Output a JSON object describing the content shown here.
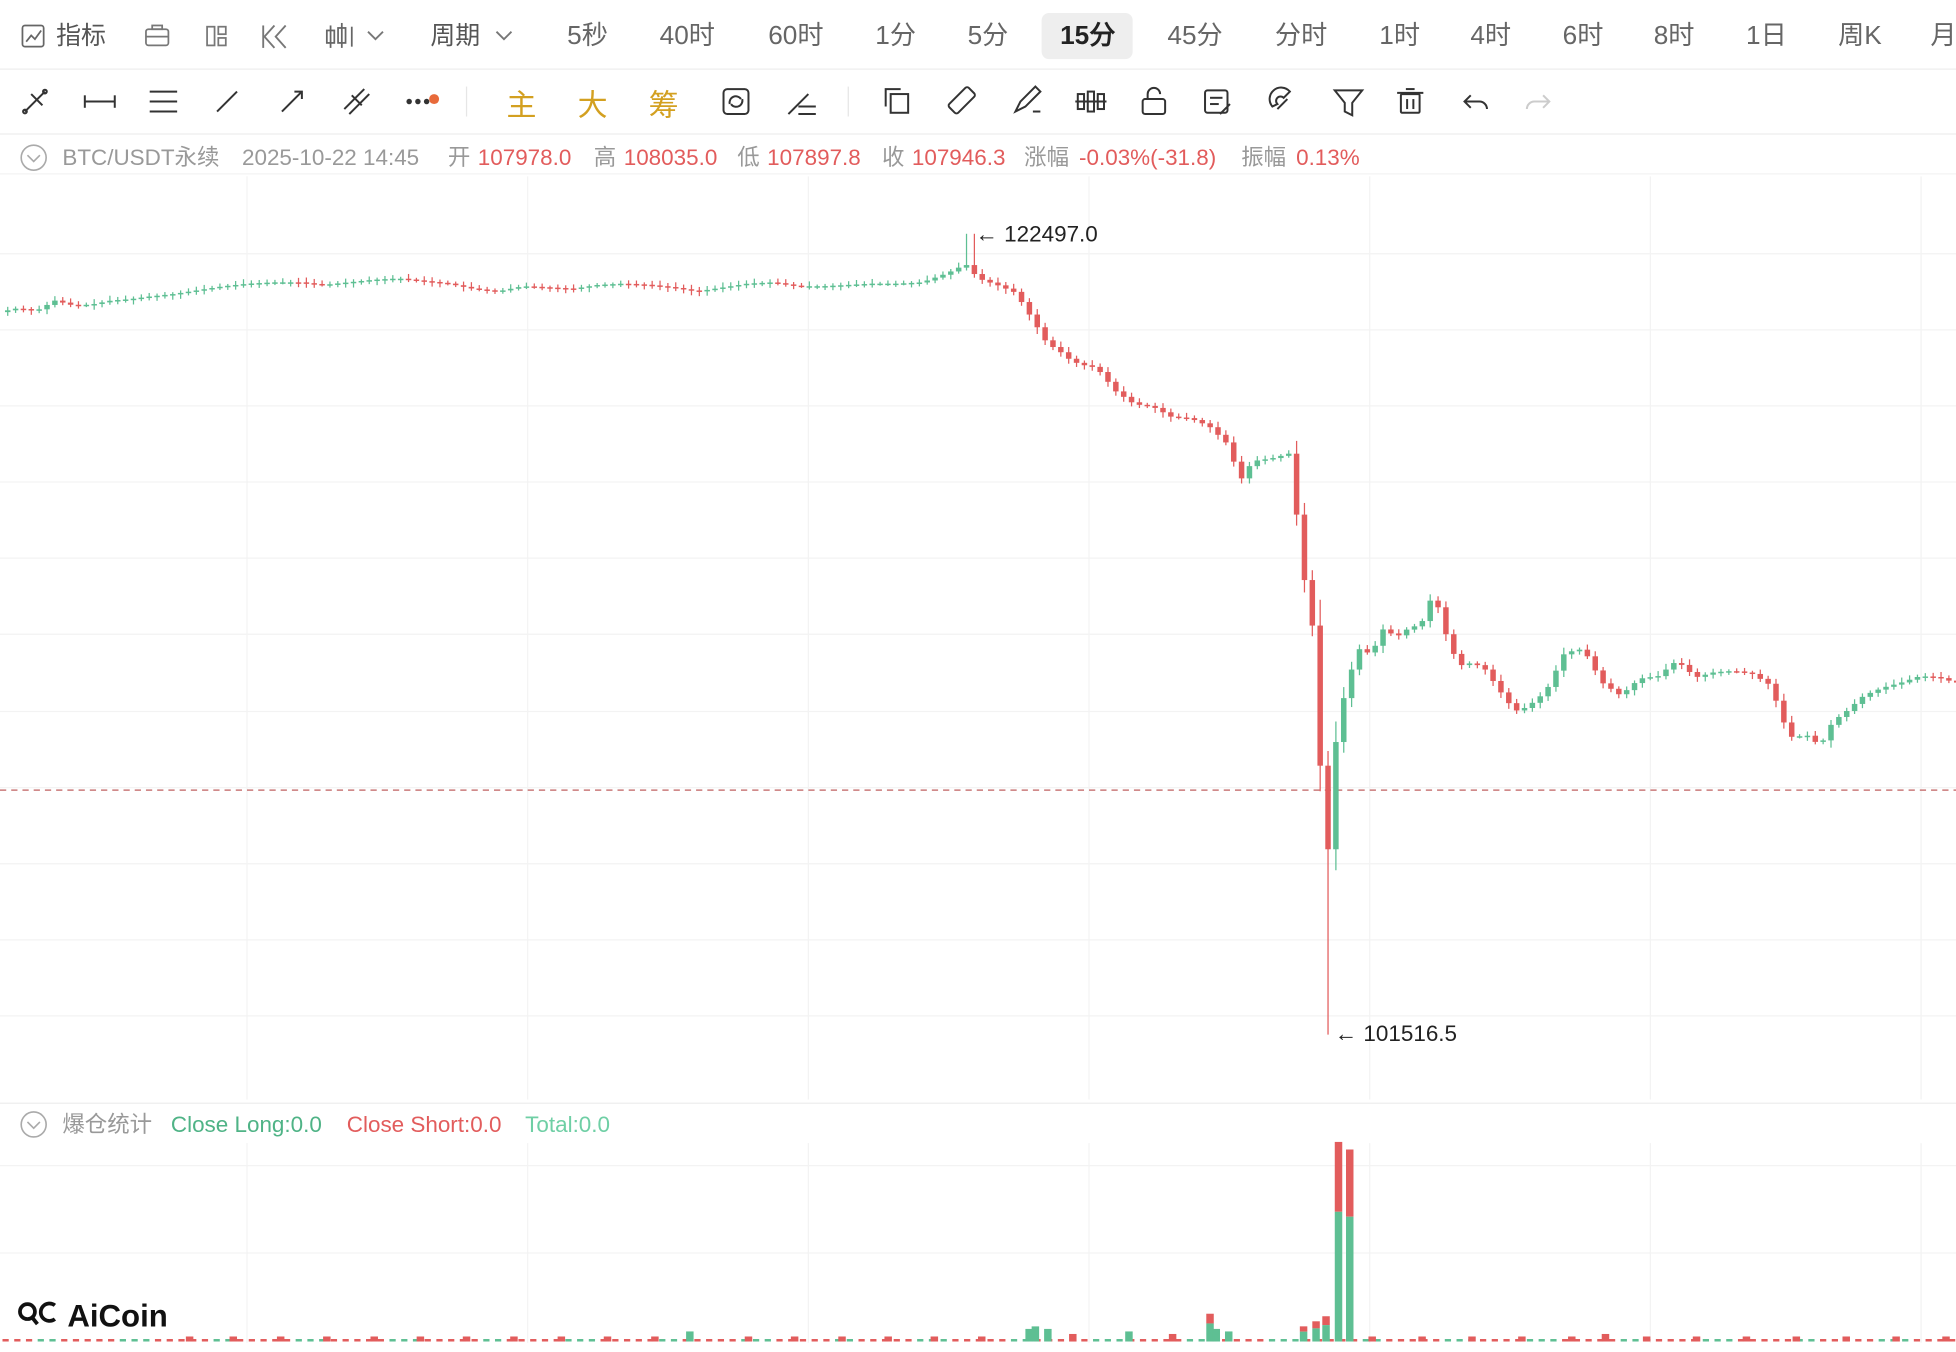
{
  "toolbar": {
    "indicator_label": "指标",
    "period_label": "周期",
    "periods": [
      "5秒",
      "40时",
      "60时",
      "1分",
      "5分",
      "15分",
      "45分",
      "分时",
      "1时",
      "4时",
      "6时",
      "8时",
      "1日",
      "周K",
      "月"
    ],
    "active_period": "15分",
    "icons": [
      "indicator-icon",
      "briefcase-icon",
      "layout-icon",
      "rewind-icon",
      "candle-type-icon",
      "chevron-down-icon"
    ]
  },
  "drawtools": {
    "icons": [
      "ray-icon",
      "horizontal-line-icon",
      "parallel-lines-icon",
      "trend-line-icon",
      "arrow-line-icon",
      "fib-icon",
      "more-icon",
      "copy-icon",
      "ruler-icon",
      "brush-icon",
      "candles-icon",
      "unlock-icon",
      "note-icon",
      "magnet-icon",
      "filter-icon",
      "trash-icon",
      "undo-icon",
      "redo-icon"
    ],
    "text_buttons": [
      "主",
      "大",
      "筹"
    ],
    "accent_color": "#d3a020"
  },
  "info": {
    "symbol": "BTC/USDT永续",
    "datetime": "2025-10-22 14:45",
    "open_label": "开",
    "open": "107978.0",
    "high_label": "高",
    "high": "108035.0",
    "low_label": "低",
    "low": "107897.8",
    "close_label": "收",
    "close": "107946.3",
    "change_label": "涨幅",
    "change": "-0.03%(-31.8)",
    "amplitude_label": "振幅",
    "amplitude": "0.13%"
  },
  "annotations": {
    "high_mark": "← 122497.0",
    "low_mark": "← 101516.5"
  },
  "liq": {
    "title": "爆仓统计",
    "close_long": "Close Long:0.0",
    "close_short": "Close Short:0.0",
    "total": "Total:0.0"
  },
  "brand": {
    "logo_text": "AiCoin"
  },
  "colors": {
    "up": "#5ebf93",
    "down": "#e25c5c",
    "grid": "#f2f2f2",
    "muted": "#999999",
    "dash": "#c97a7a"
  },
  "chart_data": {
    "type": "candlestick",
    "symbol": "BTC/USDT永续",
    "interval": "15分",
    "ohlc_range": {
      "high": 122497.0,
      "low": 101516.5
    },
    "close_trace": [
      [
        0,
        106.6
      ],
      [
        15,
        106.9
      ],
      [
        30,
        106.7
      ],
      [
        45,
        107.5
      ],
      [
        60,
        107.1
      ],
      [
        75,
        107.2
      ],
      [
        90,
        107.5
      ],
      [
        105,
        107.6
      ],
      [
        120,
        107.8
      ],
      [
        140,
        108.0
      ],
      [
        160,
        108.3
      ],
      [
        180,
        108.6
      ],
      [
        200,
        108.8
      ],
      [
        220,
        108.9
      ],
      [
        240,
        108.9
      ],
      [
        260,
        108.7
      ],
      [
        280,
        108.9
      ],
      [
        300,
        109.1
      ],
      [
        320,
        109.2
      ],
      [
        340,
        109.0
      ],
      [
        360,
        108.8
      ],
      [
        380,
        108.4
      ],
      [
        400,
        108.2
      ],
      [
        420,
        108.6
      ],
      [
        440,
        108.5
      ],
      [
        460,
        108.4
      ],
      [
        480,
        108.7
      ],
      [
        500,
        108.8
      ],
      [
        520,
        108.7
      ],
      [
        540,
        108.5
      ],
      [
        560,
        108.2
      ],
      [
        580,
        108.5
      ],
      [
        600,
        108.8
      ],
      [
        620,
        108.9
      ],
      [
        640,
        108.6
      ],
      [
        660,
        108.6
      ],
      [
        680,
        108.7
      ],
      [
        700,
        108.8
      ],
      [
        720,
        108.8
      ],
      [
        740,
        108.9
      ],
      [
        760,
        109.6
      ],
      [
        775,
        110.3
      ],
      [
        785,
        109.2
      ],
      [
        800,
        108.7
      ],
      [
        815,
        108.1
      ],
      [
        830,
        105.8
      ],
      [
        840,
        104.2
      ],
      [
        850,
        103.6
      ],
      [
        860,
        102.8
      ],
      [
        870,
        102.5
      ],
      [
        880,
        102.3
      ],
      [
        895,
        100.5
      ],
      [
        910,
        99.5
      ],
      [
        925,
        99.3
      ],
      [
        940,
        98.5
      ],
      [
        955,
        98.4
      ],
      [
        970,
        97.8
      ],
      [
        985,
        96.4
      ],
      [
        995,
        93.6
      ],
      [
        1005,
        95.1
      ],
      [
        1020,
        95.3
      ],
      [
        1035,
        95.7
      ],
      [
        1045,
        86.6
      ],
      [
        1052,
        83.4
      ],
      [
        1058,
        75.9
      ],
      [
        1062,
        60.2
      ],
      [
        1066,
        66.0
      ],
      [
        1072,
        73.8
      ],
      [
        1080,
        77.8
      ],
      [
        1090,
        80.6
      ],
      [
        1100,
        80.2
      ],
      [
        1110,
        82.2
      ],
      [
        1120,
        81.5
      ],
      [
        1130,
        82.2
      ],
      [
        1140,
        82.5
      ],
      [
        1150,
        85.0
      ],
      [
        1160,
        81.7
      ],
      [
        1170,
        79.3
      ],
      [
        1180,
        79.5
      ],
      [
        1190,
        79.2
      ],
      [
        1205,
        77.1
      ],
      [
        1215,
        75.8
      ],
      [
        1225,
        76.1
      ],
      [
        1240,
        77.3
      ],
      [
        1255,
        80.3
      ],
      [
        1270,
        80.6
      ],
      [
        1285,
        78.0
      ],
      [
        1300,
        77.0
      ],
      [
        1315,
        78.3
      ],
      [
        1330,
        78.5
      ],
      [
        1345,
        79.7
      ],
      [
        1360,
        78.4
      ],
      [
        1375,
        78.8
      ],
      [
        1390,
        78.9
      ],
      [
        1405,
        78.7
      ],
      [
        1420,
        77.8
      ],
      [
        1435,
        73.8
      ],
      [
        1450,
        73.9
      ],
      [
        1460,
        73.1
      ],
      [
        1470,
        75.0
      ],
      [
        1480,
        75.7
      ],
      [
        1495,
        77.0
      ],
      [
        1510,
        77.6
      ],
      [
        1525,
        78.0
      ],
      [
        1540,
        78.5
      ],
      [
        1555,
        78.4
      ],
      [
        1568,
        78.0
      ]
    ],
    "close_trace_units": "x = bar index position, y = price axis (price = 101516.5 + (y-trace)... approximate shape)",
    "price_labels": [
      "122497.0",
      "101516.5"
    ],
    "liquidation_bars": [
      [
        152,
        1
      ],
      [
        187,
        1
      ],
      [
        225,
        1
      ],
      [
        262,
        1
      ],
      [
        300,
        1
      ],
      [
        337,
        1
      ],
      [
        374,
        1
      ],
      [
        412,
        1
      ],
      [
        450,
        1
      ],
      [
        487,
        1
      ],
      [
        525,
        1
      ],
      [
        553,
        3
      ],
      [
        600,
        1
      ],
      [
        637,
        1
      ],
      [
        675,
        1
      ],
      [
        712,
        1
      ],
      [
        749,
        1
      ],
      [
        787,
        1
      ],
      [
        825,
        4
      ],
      [
        830,
        5
      ],
      [
        840,
        4
      ],
      [
        860,
        2
      ],
      [
        905,
        3
      ],
      [
        940,
        2
      ],
      [
        970,
        11
      ],
      [
        975,
        4
      ],
      [
        985,
        3
      ],
      [
        1045,
        6
      ],
      [
        1055,
        8
      ],
      [
        1063,
        10
      ],
      [
        1073,
        79
      ],
      [
        1082,
        76
      ],
      [
        1100,
        1
      ],
      [
        1140,
        1
      ],
      [
        1180,
        1
      ],
      [
        1220,
        1
      ],
      [
        1260,
        1
      ],
      [
        1287,
        2
      ],
      [
        1320,
        1
      ],
      [
        1360,
        1
      ],
      [
        1400,
        1
      ],
      [
        1440,
        1
      ],
      [
        1480,
        1
      ],
      [
        1520,
        1
      ],
      [
        1560,
        1
      ]
    ]
  }
}
